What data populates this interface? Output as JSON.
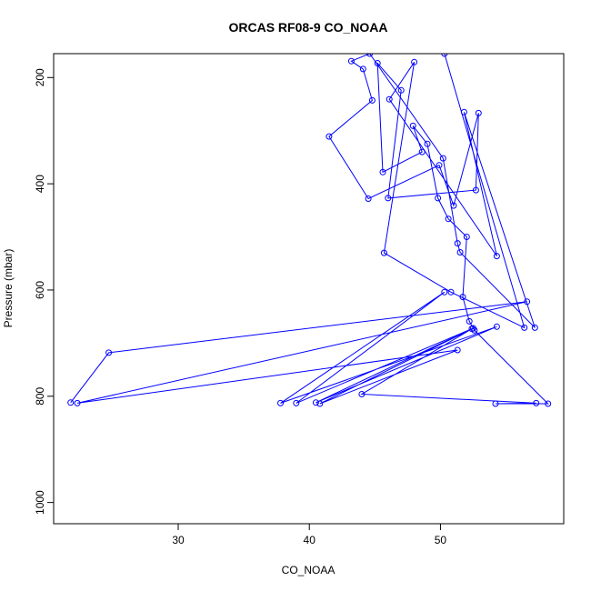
{
  "chart_data": {
    "type": "line",
    "title": "ORCAS RF08-9 CO_NOAA",
    "xlabel": "CO_NOAA",
    "ylabel": "Pressure (mbar)",
    "xlim": [
      20.5,
      59.4
    ],
    "ylim": [
      1040,
      155
    ],
    "y_reversed": true,
    "xticks": [
      30,
      40,
      50
    ],
    "yticks": [
      200,
      400,
      600,
      800,
      1000
    ],
    "grid": false,
    "legend": "none",
    "series": [
      {
        "color": "#0000ff",
        "marker": "open-circle",
        "points": [
          {
            "x": 21.8,
            "y": 812
          },
          {
            "x": 24.7,
            "y": 718
          },
          {
            "x": 56.6,
            "y": 622
          },
          {
            "x": 22.3,
            "y": 813
          },
          {
            "x": 51.3,
            "y": 713
          },
          {
            "x": 40.8,
            "y": 814
          },
          {
            "x": 52.5,
            "y": 672
          },
          {
            "x": 39.0,
            "y": 813
          },
          {
            "x": 50.3,
            "y": 604
          },
          {
            "x": 37.8,
            "y": 813
          },
          {
            "x": 54.3,
            "y": 669
          },
          {
            "x": 40.5,
            "y": 812
          },
          {
            "x": 52.4,
            "y": 673
          },
          {
            "x": 44.0,
            "y": 796
          },
          {
            "x": 57.3,
            "y": 813
          },
          {
            "x": 54.2,
            "y": 814
          },
          {
            "x": 58.2,
            "y": 814
          },
          {
            "x": 52.6,
            "y": 676
          },
          {
            "x": 52.2,
            "y": 659
          },
          {
            "x": 51.7,
            "y": 613
          },
          {
            "x": 52.0,
            "y": 500
          },
          {
            "x": 50.6,
            "y": 466
          },
          {
            "x": 49.8,
            "y": 427
          },
          {
            "x": 49.0,
            "y": 325
          },
          {
            "x": 47.9,
            "y": 291
          },
          {
            "x": 48.6,
            "y": 340
          },
          {
            "x": 45.6,
            "y": 378
          },
          {
            "x": 45.2,
            "y": 173
          },
          {
            "x": 47.0,
            "y": 224
          },
          {
            "x": 46.0,
            "y": 427
          },
          {
            "x": 52.7,
            "y": 412
          },
          {
            "x": 52.9,
            "y": 267
          },
          {
            "x": 51.0,
            "y": 441
          },
          {
            "x": 49.9,
            "y": 365
          },
          {
            "x": 44.5,
            "y": 428
          },
          {
            "x": 41.5,
            "y": 311
          },
          {
            "x": 44.8,
            "y": 243
          },
          {
            "x": 44.1,
            "y": 184
          },
          {
            "x": 43.2,
            "y": 169
          },
          {
            "x": 44.6,
            "y": 155
          },
          {
            "x": 50.2,
            "y": 352
          },
          {
            "x": 51.3,
            "y": 512
          },
          {
            "x": 51.5,
            "y": 529
          },
          {
            "x": 57.2,
            "y": 671
          },
          {
            "x": 51.8,
            "y": 265
          },
          {
            "x": 54.3,
            "y": 536
          },
          {
            "x": 46.1,
            "y": 241
          },
          {
            "x": 48.0,
            "y": 171
          },
          {
            "x": 45.7,
            "y": 530
          },
          {
            "x": 50.8,
            "y": 604
          },
          {
            "x": 56.4,
            "y": 671
          },
          {
            "x": 50.3,
            "y": 155
          }
        ]
      }
    ]
  }
}
